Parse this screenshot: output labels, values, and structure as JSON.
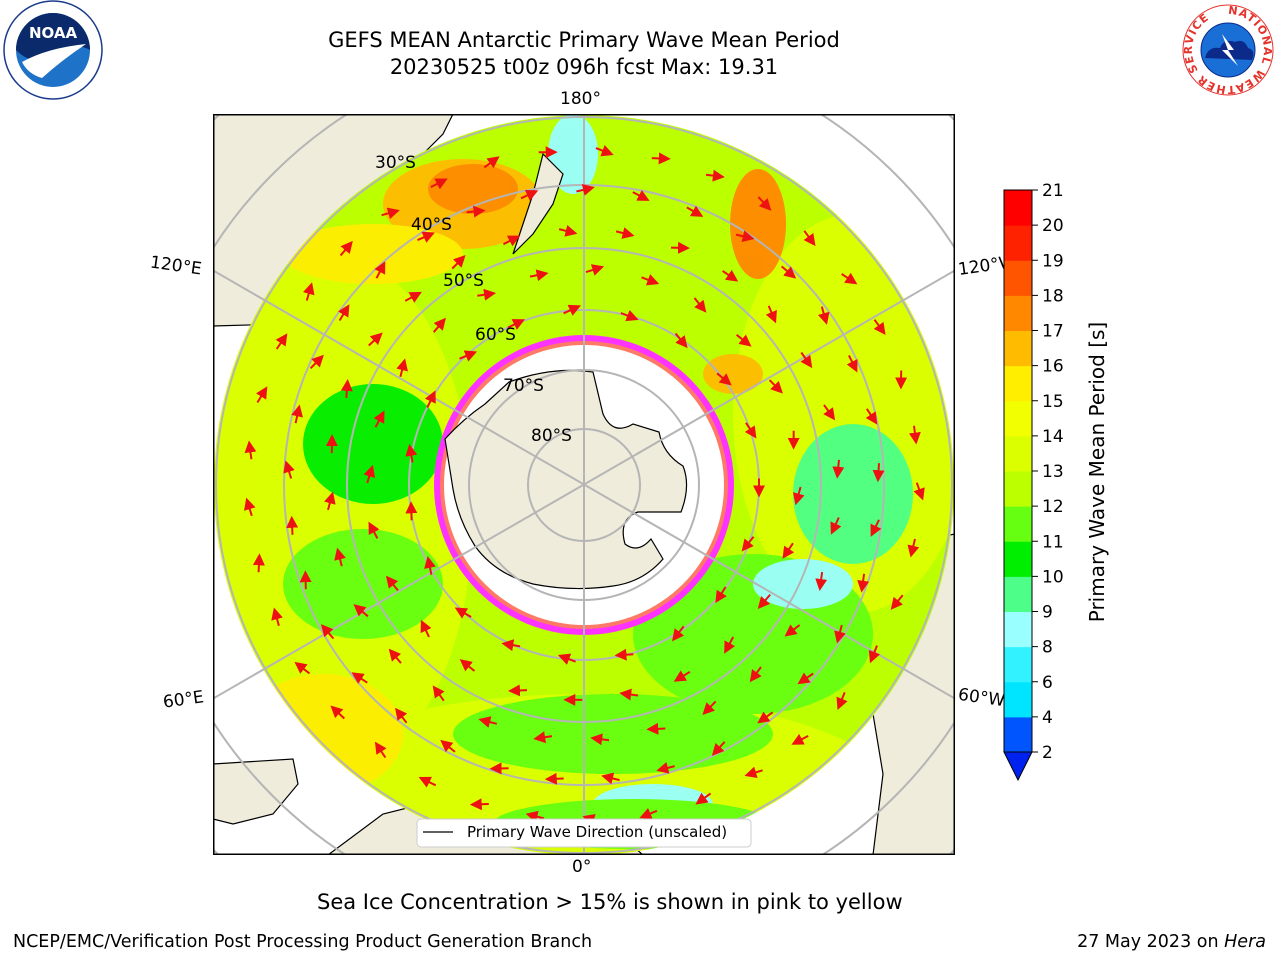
{
  "title": {
    "line1": "GEFS MEAN Antarctic Primary Wave Mean Period",
    "line2": "20230525 t00z 096h fcst   Max: 19.31"
  },
  "map": {
    "projection": "south-polar-stereographic",
    "longitude_labels": {
      "top": "180°",
      "bottom": "0°",
      "upper_left": "120°E",
      "upper_right": "120°W",
      "lower_left": "60°E",
      "lower_right": "60°W"
    },
    "latitude_labels": [
      "30°S",
      "40°S",
      "50°S",
      "60°S",
      "70°S",
      "80°S"
    ],
    "legend_label": "Primary Wave Direction (unscaled)",
    "land_color": "#efecdc",
    "ice_color": "#ff33ff",
    "arrow_color": "#ee1111"
  },
  "colorbar": {
    "label": "Primary Wave Mean Period [s]",
    "ticks": [
      "2",
      "4",
      "6",
      "8",
      "9",
      "10",
      "11",
      "12",
      "13",
      "14",
      "15",
      "16",
      "17",
      "18",
      "19",
      "20",
      "21"
    ],
    "colors": [
      "#0055ff",
      "#00e5ff",
      "#33f2ff",
      "#99ffff",
      "#4dff88",
      "#00ee00",
      "#66ff11",
      "#bbff00",
      "#dcff00",
      "#f2ff00",
      "#ffee00",
      "#ffbb00",
      "#ff8800",
      "#ff5500",
      "#ff2200",
      "#ff0000"
    ],
    "extend_color": "#0022ee"
  },
  "note": "Sea Ice Concentration > 15% is shown in pink to yellow",
  "footer": {
    "left": "NCEP/EMC/Verification Post Processing Product Generation Branch",
    "right_date": "27 May 2023 on ",
    "right_host": "Hera"
  },
  "logos": {
    "noaa_text": "NOAA",
    "nws_ring_text": "NATIONAL WEATHER SERVICE"
  }
}
